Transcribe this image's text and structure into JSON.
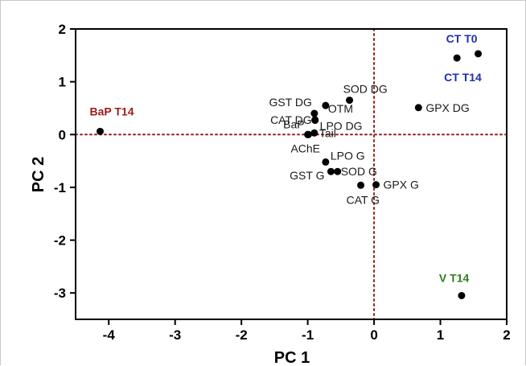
{
  "chart_data": {
    "type": "scatter",
    "title": "",
    "xlabel": "PC 1",
    "ylabel": "PC 2",
    "xlim": [
      -4.5,
      2
    ],
    "ylim": [
      -3.5,
      2
    ],
    "xticks": [
      "-4",
      "-3",
      "-2",
      "-1",
      "0",
      "1",
      "2"
    ],
    "yticks": [
      "2",
      "1",
      "0",
      "-1",
      "-2",
      "-3"
    ],
    "reference_lines": {
      "x": 0,
      "y": 0,
      "color": "#9b1b1b",
      "style": "dotted"
    },
    "colors": {
      "points": "#000000",
      "CT": "#1f2fb4",
      "BaP": "#9b1b1b",
      "V": "#2e7d1f"
    },
    "points": [
      {
        "label": "CT T0",
        "x": 1.57,
        "y": 1.53,
        "group": "CT"
      },
      {
        "label": "CT T14",
        "x": 1.25,
        "y": 1.45,
        "group": "CT"
      },
      {
        "label": "BaP T14",
        "x": -4.13,
        "y": 0.06,
        "group": "BaP"
      },
      {
        "label": "V T14",
        "x": 1.32,
        "y": -3.05,
        "group": "V"
      },
      {
        "label": "GPX DG",
        "x": 0.67,
        "y": 0.51,
        "group": "var"
      },
      {
        "label": "SOD DG",
        "x": -0.37,
        "y": 0.65,
        "group": "var"
      },
      {
        "label": "OTM",
        "x": -0.73,
        "y": 0.55,
        "group": "var"
      },
      {
        "label": "GST DG",
        "x": -0.9,
        "y": 0.4,
        "group": "var"
      },
      {
        "label": "CAT DG",
        "x": -0.89,
        "y": 0.28,
        "group": "var"
      },
      {
        "label": "LPO DG",
        "x": -0.89,
        "y": 0.27,
        "group": "var"
      },
      {
        "label": "BaP",
        "x": -1.0,
        "y": 0.0,
        "group": "var"
      },
      {
        "label": "Tail",
        "x": -0.9,
        "y": 0.03,
        "group": "var"
      },
      {
        "label": "AChE",
        "x": -0.99,
        "y": 0.0,
        "group": "var"
      },
      {
        "label": "LPO G",
        "x": -0.73,
        "y": -0.52,
        "group": "var"
      },
      {
        "label": "SOD G",
        "x": -0.55,
        "y": -0.7,
        "group": "var"
      },
      {
        "label": "GST G",
        "x": -0.65,
        "y": -0.7,
        "group": "var"
      },
      {
        "label": "GPX G",
        "x": 0.03,
        "y": -0.95,
        "group": "var"
      },
      {
        "label": "CAT G",
        "x": -0.2,
        "y": -0.96,
        "group": "var"
      }
    ]
  }
}
